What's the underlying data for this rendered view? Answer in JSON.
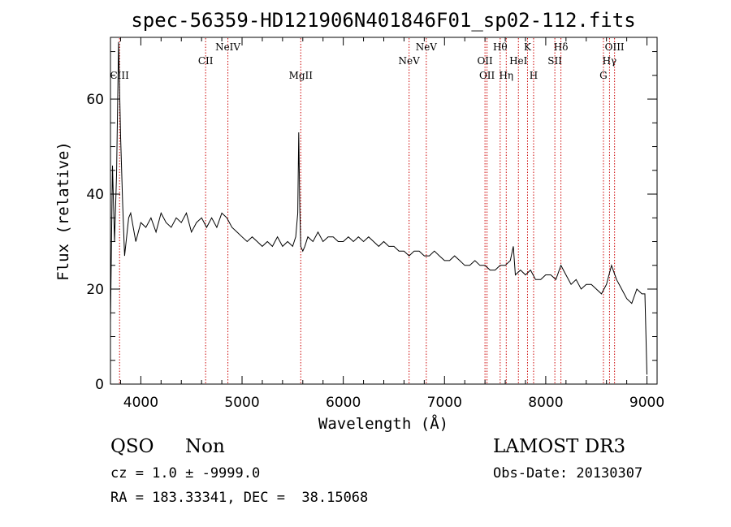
{
  "chart_data": {
    "type": "line",
    "title": "spec-56359-HD121906N401846F01_sp02-112.fits",
    "xlabel": "Wavelength (Å)",
    "ylabel": "Flux (relative)",
    "xlim": [
      3700,
      9100
    ],
    "ylim": [
      0,
      73
    ],
    "x_ticks": [
      4000,
      5000,
      6000,
      7000,
      8000,
      9000
    ],
    "y_ticks": [
      0,
      20,
      40,
      60
    ],
    "line_color": "#000000",
    "marker_color": "#cc0000",
    "series": [
      {
        "x": [
          3700,
          3720,
          3740,
          3760,
          3780,
          3800,
          3820,
          3840,
          3860,
          3880,
          3900,
          3950,
          4000,
          4050,
          4100,
          4150,
          4200,
          4250,
          4300,
          4350,
          4400,
          4450,
          4500,
          4550,
          4600,
          4650,
          4700,
          4750,
          4800,
          4850,
          4900,
          4950,
          5000,
          5050,
          5100,
          5150,
          5200,
          5250,
          5300,
          5350,
          5400,
          5450,
          5500,
          5530,
          5550,
          5560,
          5570,
          5580,
          5600,
          5620,
          5650,
          5700,
          5750,
          5800,
          5850,
          5900,
          5950,
          6000,
          6050,
          6100,
          6150,
          6200,
          6250,
          6300,
          6350,
          6400,
          6450,
          6500,
          6550,
          6600,
          6650,
          6700,
          6750,
          6800,
          6850,
          6900,
          6950,
          7000,
          7050,
          7100,
          7150,
          7200,
          7250,
          7300,
          7350,
          7400,
          7450,
          7500,
          7550,
          7600,
          7650,
          7680,
          7700,
          7750,
          7800,
          7850,
          7900,
          7950,
          8000,
          8050,
          8100,
          8150,
          8200,
          8250,
          8300,
          8350,
          8400,
          8450,
          8500,
          8550,
          8600,
          8650,
          8700,
          8750,
          8800,
          8850,
          8900,
          8950,
          8980,
          9000
        ],
        "y": [
          13,
          46,
          30,
          44,
          72,
          52,
          38,
          27,
          31,
          35,
          36,
          30,
          34,
          33,
          35,
          32,
          36,
          34,
          33,
          35,
          34,
          36,
          32,
          34,
          35,
          33,
          35,
          33,
          36,
          35,
          33,
          32,
          31,
          30,
          31,
          30,
          29,
          30,
          29,
          31,
          29,
          30,
          29,
          31,
          36,
          53,
          37,
          29,
          28,
          29,
          31,
          30,
          32,
          30,
          31,
          31,
          30,
          30,
          31,
          30,
          31,
          30,
          31,
          30,
          29,
          30,
          29,
          29,
          28,
          28,
          27,
          28,
          28,
          27,
          27,
          28,
          27,
          26,
          26,
          27,
          26,
          25,
          25,
          26,
          25,
          25,
          24,
          24,
          25,
          25,
          26,
          29,
          23,
          24,
          23,
          24,
          22,
          22,
          23,
          23,
          22,
          25,
          23,
          21,
          22,
          20,
          21,
          21,
          20,
          19,
          21,
          25,
          22,
          20,
          18,
          17,
          20,
          19,
          19,
          2
        ]
      }
    ],
    "lines": [
      {
        "label": "CIII",
        "x": 3790,
        "row": 2
      },
      {
        "label": "CII",
        "x": 4640,
        "row": 1
      },
      {
        "label": "NeIV",
        "x": 4860,
        "row": 0
      },
      {
        "label": "MgII",
        "x": 5580,
        "row": 2
      },
      {
        "label": "NeV",
        "x": 6650,
        "row": 1
      },
      {
        "label": "NeV",
        "x": 6820,
        "row": 0
      },
      {
        "label": "OII",
        "x": 7400,
        "row": 1
      },
      {
        "label": "OII",
        "x": 7420,
        "row": 2
      },
      {
        "label": "Hθ",
        "x": 7550,
        "row": 0
      },
      {
        "label": "Hη",
        "x": 7610,
        "row": 2
      },
      {
        "label": "HeI",
        "x": 7730,
        "row": 1
      },
      {
        "label": "K",
        "x": 7820,
        "row": 0
      },
      {
        "label": "H",
        "x": 7880,
        "row": 2
      },
      {
        "label": "SII",
        "x": 8090,
        "row": 1
      },
      {
        "label": "Hδ",
        "x": 8150,
        "row": 0
      },
      {
        "label": "G",
        "x": 8570,
        "row": 2
      },
      {
        "label": "Hγ",
        "x": 8630,
        "row": 1
      },
      {
        "label": "OIII",
        "x": 8680,
        "row": 0
      }
    ]
  },
  "info": {
    "class": "QSO",
    "subclass": "Non",
    "cz": "cz = 1.0 ± -9999.0",
    "radec": "RA = 183.33341, DEC =  38.15068",
    "survey": "LAMOST DR3",
    "obsdate": "Obs-Date: 20130307"
  }
}
